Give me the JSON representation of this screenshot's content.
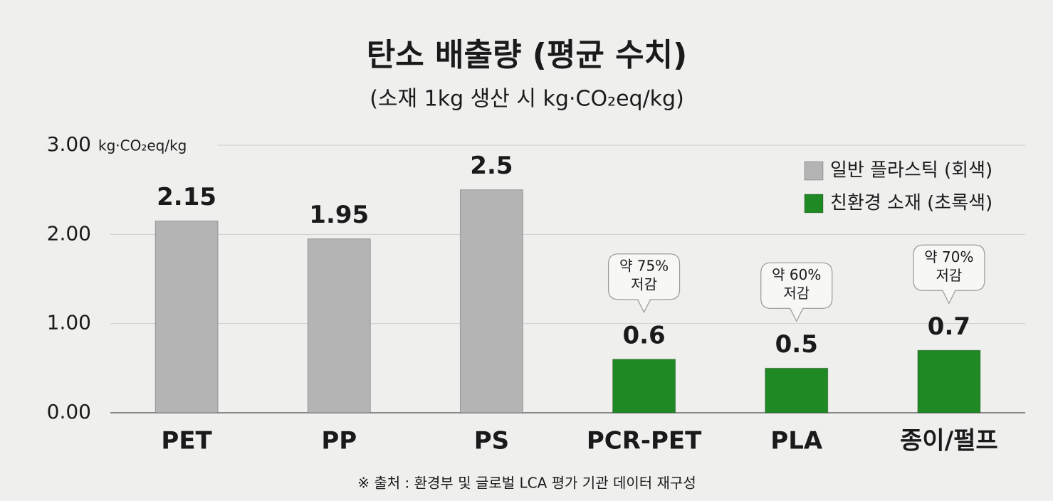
{
  "chart_data": {
    "type": "bar",
    "title": "탄소 배출량 (평균 수치)",
    "subtitle": "(소재 1kg 생산 시 kg·CO₂eq/kg)",
    "y_unit": "kg·CO₂eq/kg",
    "categories": [
      "PET",
      "PP",
      "PS",
      "PCR-PET",
      "PLA",
      "종이/펄프"
    ],
    "series": [
      {
        "name": "일반 플라스틱 (회색)",
        "color": "#b4b4b4",
        "values": [
          2.15,
          1.95,
          2.5,
          null,
          null,
          null
        ]
      },
      {
        "name": "친환경 소재 (초록색)",
        "color": "#1f8a24",
        "values": [
          null,
          null,
          null,
          0.6,
          0.5,
          0.7
        ]
      }
    ],
    "callouts": [
      null,
      null,
      null,
      [
        "약 75%",
        "저감"
      ],
      [
        "약 60%",
        "저감"
      ],
      [
        "약 70%",
        "저감"
      ]
    ],
    "ylim": [
      0,
      3
    ],
    "yticks": [
      {
        "value": 0,
        "label": "0.00"
      },
      {
        "value": 1,
        "label": "1.00"
      },
      {
        "value": 2,
        "label": "2.00"
      },
      {
        "value": 3,
        "label": "3.00"
      }
    ],
    "grid": true,
    "legend": "upper right",
    "source": "※ 출처 : 환경부 및 글로벌 LCA 평가 기관 데이터 재구성"
  }
}
